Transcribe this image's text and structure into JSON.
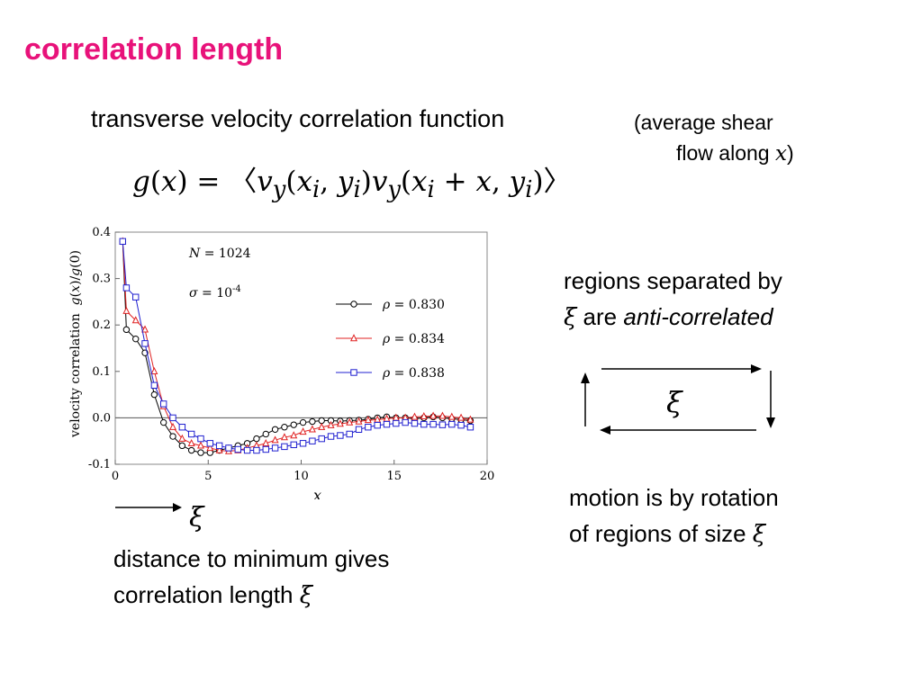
{
  "slide": {
    "title": "correlation length",
    "subtitle": "transverse velocity correlation function",
    "note_line1": "(average shear",
    "note_line2_prefix": "flow along ",
    "note_var": "x",
    "note_close": ")",
    "formula": {
      "lhs": "g(x) = ",
      "rhs": "〈v<sub>y</sub>(x<sub>i</sub>, y<sub>i</sub>)v<sub>y</sub>(x<sub>i</sub> + x, y<sub>i</sub>)〉"
    },
    "regions": {
      "line1": "regions separated by",
      "xi": "ξ",
      "are": " are ",
      "anti": "anti-correlated"
    },
    "box_xi": "ξ",
    "motion": {
      "line1": "motion is by rotation",
      "line2": "of regions of size ",
      "xi": "ξ"
    },
    "arrow_xi": "ξ",
    "distance": {
      "line1": "distance to minimum gives",
      "line2": "correlation length ",
      "xi": "ξ"
    }
  },
  "colors": {
    "title": "#e8127a",
    "rho_0830": "#000000",
    "rho_0834": "#e02020",
    "rho_0838": "#2020d0"
  },
  "chart_data": {
    "type": "line",
    "xlabel": "x",
    "ylabel": "velocity correlation  g(x)/g(0)",
    "xlim": [
      0,
      20
    ],
    "ylim": [
      -0.1,
      0.4
    ],
    "xticks": [
      0,
      5,
      10,
      15,
      20
    ],
    "yticks": [
      -0.1,
      0.0,
      0.1,
      0.2,
      0.3,
      0.4
    ],
    "annotations": [
      "N = 1024",
      "σ = 10-4"
    ],
    "legend_position": "right",
    "series": [
      {
        "name": "ρ = 0.830",
        "marker": "circle",
        "color": "#000000",
        "points": [
          [
            0.4,
            0.38
          ],
          [
            0.6,
            0.19
          ],
          [
            1.1,
            0.17
          ],
          [
            1.6,
            0.14
          ],
          [
            2.1,
            0.05
          ],
          [
            2.6,
            -0.01
          ],
          [
            3.1,
            -0.04
          ],
          [
            3.6,
            -0.06
          ],
          [
            4.1,
            -0.07
          ],
          [
            4.6,
            -0.075
          ],
          [
            5.1,
            -0.075
          ],
          [
            5.6,
            -0.07
          ],
          [
            6.1,
            -0.065
          ],
          [
            6.6,
            -0.06
          ],
          [
            7.1,
            -0.055
          ],
          [
            7.6,
            -0.045
          ],
          [
            8.1,
            -0.035
          ],
          [
            8.6,
            -0.025
          ],
          [
            9.1,
            -0.02
          ],
          [
            9.6,
            -0.015
          ],
          [
            10.1,
            -0.01
          ],
          [
            10.6,
            -0.008
          ],
          [
            11.1,
            -0.006
          ],
          [
            11.6,
            -0.006
          ],
          [
            12.1,
            -0.007
          ],
          [
            12.6,
            -0.006
          ],
          [
            13.1,
            -0.005
          ],
          [
            13.6,
            -0.003
          ],
          [
            14.1,
            0.0
          ],
          [
            14.6,
            0.002
          ],
          [
            15.1,
            0.0
          ],
          [
            15.6,
            0.0
          ],
          [
            16.1,
            -0.002
          ],
          [
            16.6,
            0.0
          ],
          [
            17.1,
            0.002
          ],
          [
            17.6,
            0.0
          ],
          [
            18.1,
            -0.002
          ],
          [
            18.6,
            -0.004
          ],
          [
            19.1,
            -0.006
          ]
        ]
      },
      {
        "name": "ρ = 0.834",
        "marker": "triangle",
        "color": "#e02020",
        "points": [
          [
            0.4,
            0.38
          ],
          [
            0.6,
            0.23
          ],
          [
            1.1,
            0.21
          ],
          [
            1.6,
            0.19
          ],
          [
            2.1,
            0.1
          ],
          [
            2.6,
            0.025
          ],
          [
            3.1,
            -0.02
          ],
          [
            3.6,
            -0.045
          ],
          [
            4.1,
            -0.055
          ],
          [
            4.6,
            -0.06
          ],
          [
            5.1,
            -0.065
          ],
          [
            5.6,
            -0.07
          ],
          [
            6.1,
            -0.072
          ],
          [
            6.6,
            -0.07
          ],
          [
            7.1,
            -0.065
          ],
          [
            7.6,
            -0.06
          ],
          [
            8.1,
            -0.055
          ],
          [
            8.6,
            -0.048
          ],
          [
            9.1,
            -0.042
          ],
          [
            9.6,
            -0.038
          ],
          [
            10.1,
            -0.03
          ],
          [
            10.6,
            -0.025
          ],
          [
            11.1,
            -0.02
          ],
          [
            11.6,
            -0.016
          ],
          [
            12.1,
            -0.013
          ],
          [
            12.6,
            -0.01
          ],
          [
            13.1,
            -0.008
          ],
          [
            13.6,
            -0.005
          ],
          [
            14.1,
            -0.004
          ],
          [
            14.6,
            -0.002
          ],
          [
            15.1,
            0.0
          ],
          [
            15.6,
            0.0
          ],
          [
            16.1,
            0.002
          ],
          [
            16.6,
            0.003
          ],
          [
            17.1,
            0.004
          ],
          [
            17.6,
            0.004
          ],
          [
            18.1,
            0.002
          ],
          [
            18.6,
            0.0
          ],
          [
            19.1,
            -0.004
          ]
        ]
      },
      {
        "name": "ρ = 0.838",
        "marker": "square",
        "color": "#2020d0",
        "points": [
          [
            0.4,
            0.38
          ],
          [
            0.6,
            0.28
          ],
          [
            1.1,
            0.26
          ],
          [
            1.6,
            0.16
          ],
          [
            2.1,
            0.07
          ],
          [
            2.6,
            0.03
          ],
          [
            3.1,
            0.0
          ],
          [
            3.6,
            -0.02
          ],
          [
            4.1,
            -0.035
          ],
          [
            4.6,
            -0.045
          ],
          [
            5.1,
            -0.055
          ],
          [
            5.6,
            -0.06
          ],
          [
            6.1,
            -0.065
          ],
          [
            6.6,
            -0.068
          ],
          [
            7.1,
            -0.07
          ],
          [
            7.6,
            -0.07
          ],
          [
            8.1,
            -0.068
          ],
          [
            8.6,
            -0.065
          ],
          [
            9.1,
            -0.062
          ],
          [
            9.6,
            -0.058
          ],
          [
            10.1,
            -0.055
          ],
          [
            10.6,
            -0.05
          ],
          [
            11.1,
            -0.045
          ],
          [
            11.6,
            -0.04
          ],
          [
            12.1,
            -0.038
          ],
          [
            12.6,
            -0.035
          ],
          [
            13.1,
            -0.025
          ],
          [
            13.6,
            -0.02
          ],
          [
            14.1,
            -0.016
          ],
          [
            14.6,
            -0.014
          ],
          [
            15.1,
            -0.012
          ],
          [
            15.6,
            -0.01
          ],
          [
            16.1,
            -0.012
          ],
          [
            16.6,
            -0.014
          ],
          [
            17.1,
            -0.014
          ],
          [
            17.6,
            -0.015
          ],
          [
            18.1,
            -0.014
          ],
          [
            18.6,
            -0.016
          ],
          [
            19.1,
            -0.02
          ]
        ]
      }
    ]
  }
}
